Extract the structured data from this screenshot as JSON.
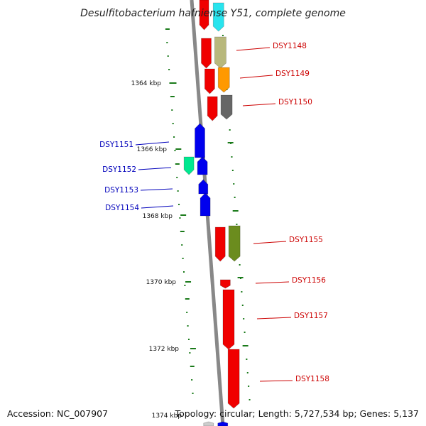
{
  "title": "Desulfitobacterium hafniense Y51, complete genome",
  "footer": {
    "accession": "Accession: NC_007907",
    "summary": "Topology: circular; Length: 5,727,534 bp; Genes: 5,137"
  },
  "colors": {
    "backbone": "#888888",
    "tick": "#1a7a1a",
    "forward_label": "#cc0000",
    "reverse_label": "#0000bb"
  },
  "scale_labels": [
    "1364 kbp",
    "1366 kbp",
    "1368 kbp",
    "1370 kbp",
    "1372 kbp",
    "1374 kbp"
  ],
  "gene_labels": {
    "forward": [
      "DSY1148",
      "DSY1149",
      "DSY1150",
      "DSY1155",
      "DSY1156",
      "DSY1157",
      "DSY1158"
    ],
    "reverse": [
      "DSY1151",
      "DSY1152",
      "DSY1153",
      "DSY1154"
    ]
  }
}
